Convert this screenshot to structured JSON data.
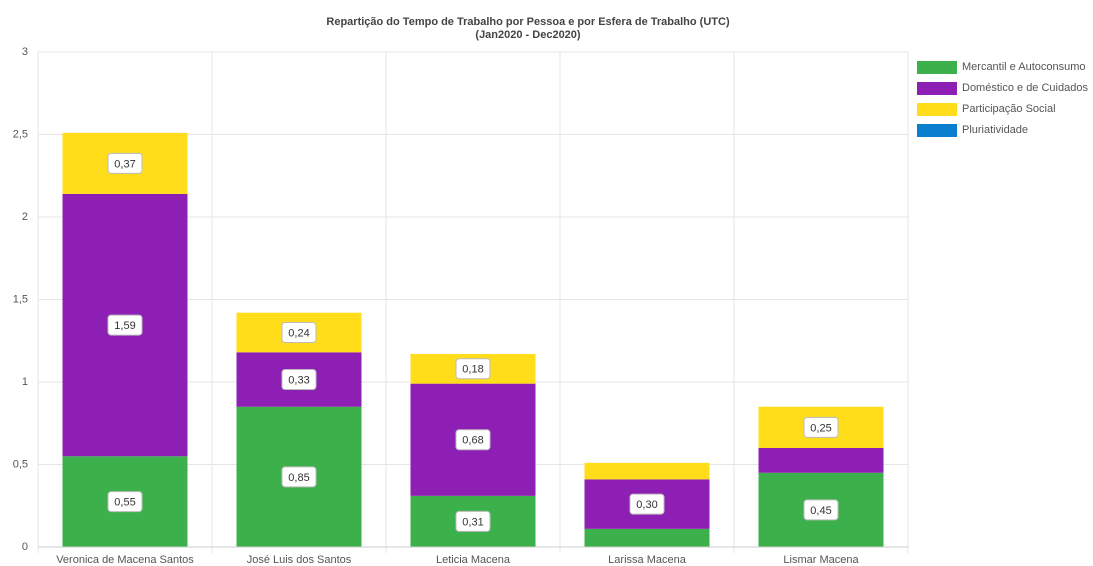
{
  "chart_data": {
    "type": "stacked_bar",
    "title": "Repartição do Tempo de Trabalho por Pessoa e por Esfera de Trabalho (UTC)",
    "subtitle": "(Jan2020 - Dec2020)",
    "categories": [
      "Veronica de Macena Santos",
      "José Luis dos Santos",
      "Leticia Macena",
      "Larissa Macena",
      "Lismar Macena"
    ],
    "series": [
      {
        "name": "Mercantil e Autoconsumo",
        "color": "#3cb04a",
        "values": [
          0.55,
          0.85,
          0.31,
          0.11,
          0.45
        ],
        "value_labels": [
          "0,55",
          "0,85",
          "0,31",
          null,
          "0,45"
        ]
      },
      {
        "name": "Doméstico e de Cuidados",
        "color": "#8e1fb4",
        "values": [
          1.59,
          0.33,
          0.68,
          0.3,
          0.15
        ],
        "value_labels": [
          "1,59",
          "0,33",
          "0,68",
          "0,30",
          null
        ]
      },
      {
        "name": "Participação Social",
        "color": "#ffdd1a",
        "values": [
          0.37,
          0.24,
          0.18,
          0.1,
          0.25
        ],
        "value_labels": [
          "0,37",
          "0,24",
          "0,18",
          null,
          "0,25"
        ]
      },
      {
        "name": "Pluriatividade",
        "color": "#0a7fd0",
        "values": [
          0,
          0,
          0,
          0,
          0
        ]
      }
    ],
    "ylim": [
      0,
      3
    ],
    "yticks": [
      0,
      {
        "value": 0.5,
        "label": "0,5"
      },
      1,
      {
        "value": 1.5,
        "label": "1,5"
      },
      2,
      {
        "value": 2.5,
        "label": "2,5"
      },
      3
    ],
    "grid": true,
    "legend": "right"
  }
}
